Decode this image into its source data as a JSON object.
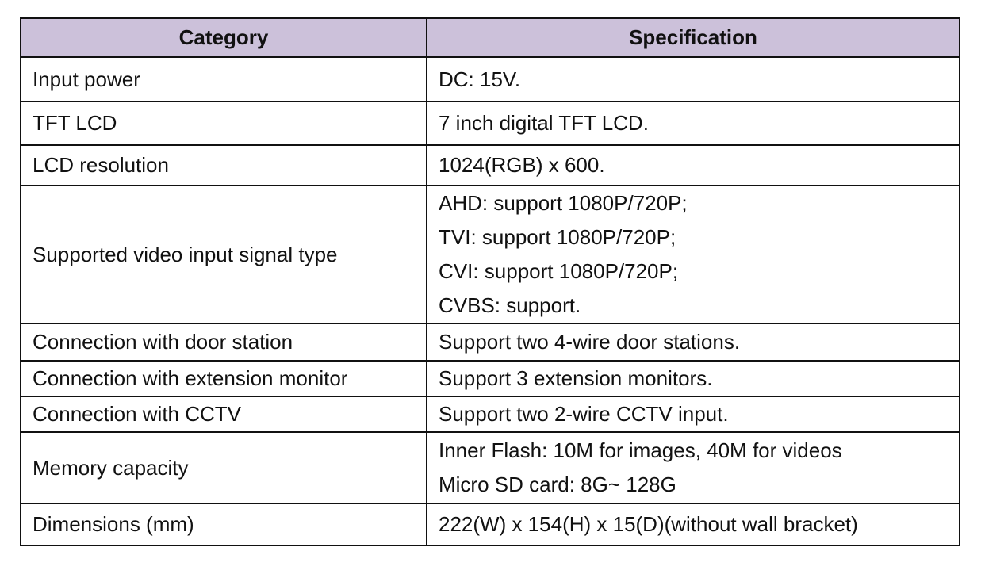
{
  "header": {
    "category": "Category",
    "specification": "Specification"
  },
  "header_color": "#ccc1da",
  "rows": [
    {
      "category": "Input power",
      "spec": [
        "DC: 15V."
      ]
    },
    {
      "category": "TFT LCD",
      "spec": [
        "7 inch digital TFT LCD."
      ]
    },
    {
      "category": "LCD resolution",
      "spec": [
        "1024(RGB) x 600."
      ]
    },
    {
      "category": "Supported video input signal type",
      "spec": [
        "AHD: support 1080P/720P;",
        "TVI: support 1080P/720P;",
        "CVI: support 1080P/720P;",
        "CVBS: support."
      ]
    },
    {
      "category": "Connection with door station",
      "spec": [
        "Support two 4-wire door stations."
      ]
    },
    {
      "category": "Connection with extension monitor",
      "spec": [
        "Support 3 extension monitors."
      ]
    },
    {
      "category": "Connection with CCTV",
      "spec": [
        "Support two 2-wire CCTV input."
      ]
    },
    {
      "category": "Memory capacity",
      "spec": [
        "Inner Flash: 10M for images, 40M for videos",
        "Micro SD card: 8G~ 128G"
      ]
    },
    {
      "category": "Dimensions (mm)",
      "spec": [
        "222(W) x 154(H) x 15(D)(without wall bracket)"
      ]
    }
  ]
}
